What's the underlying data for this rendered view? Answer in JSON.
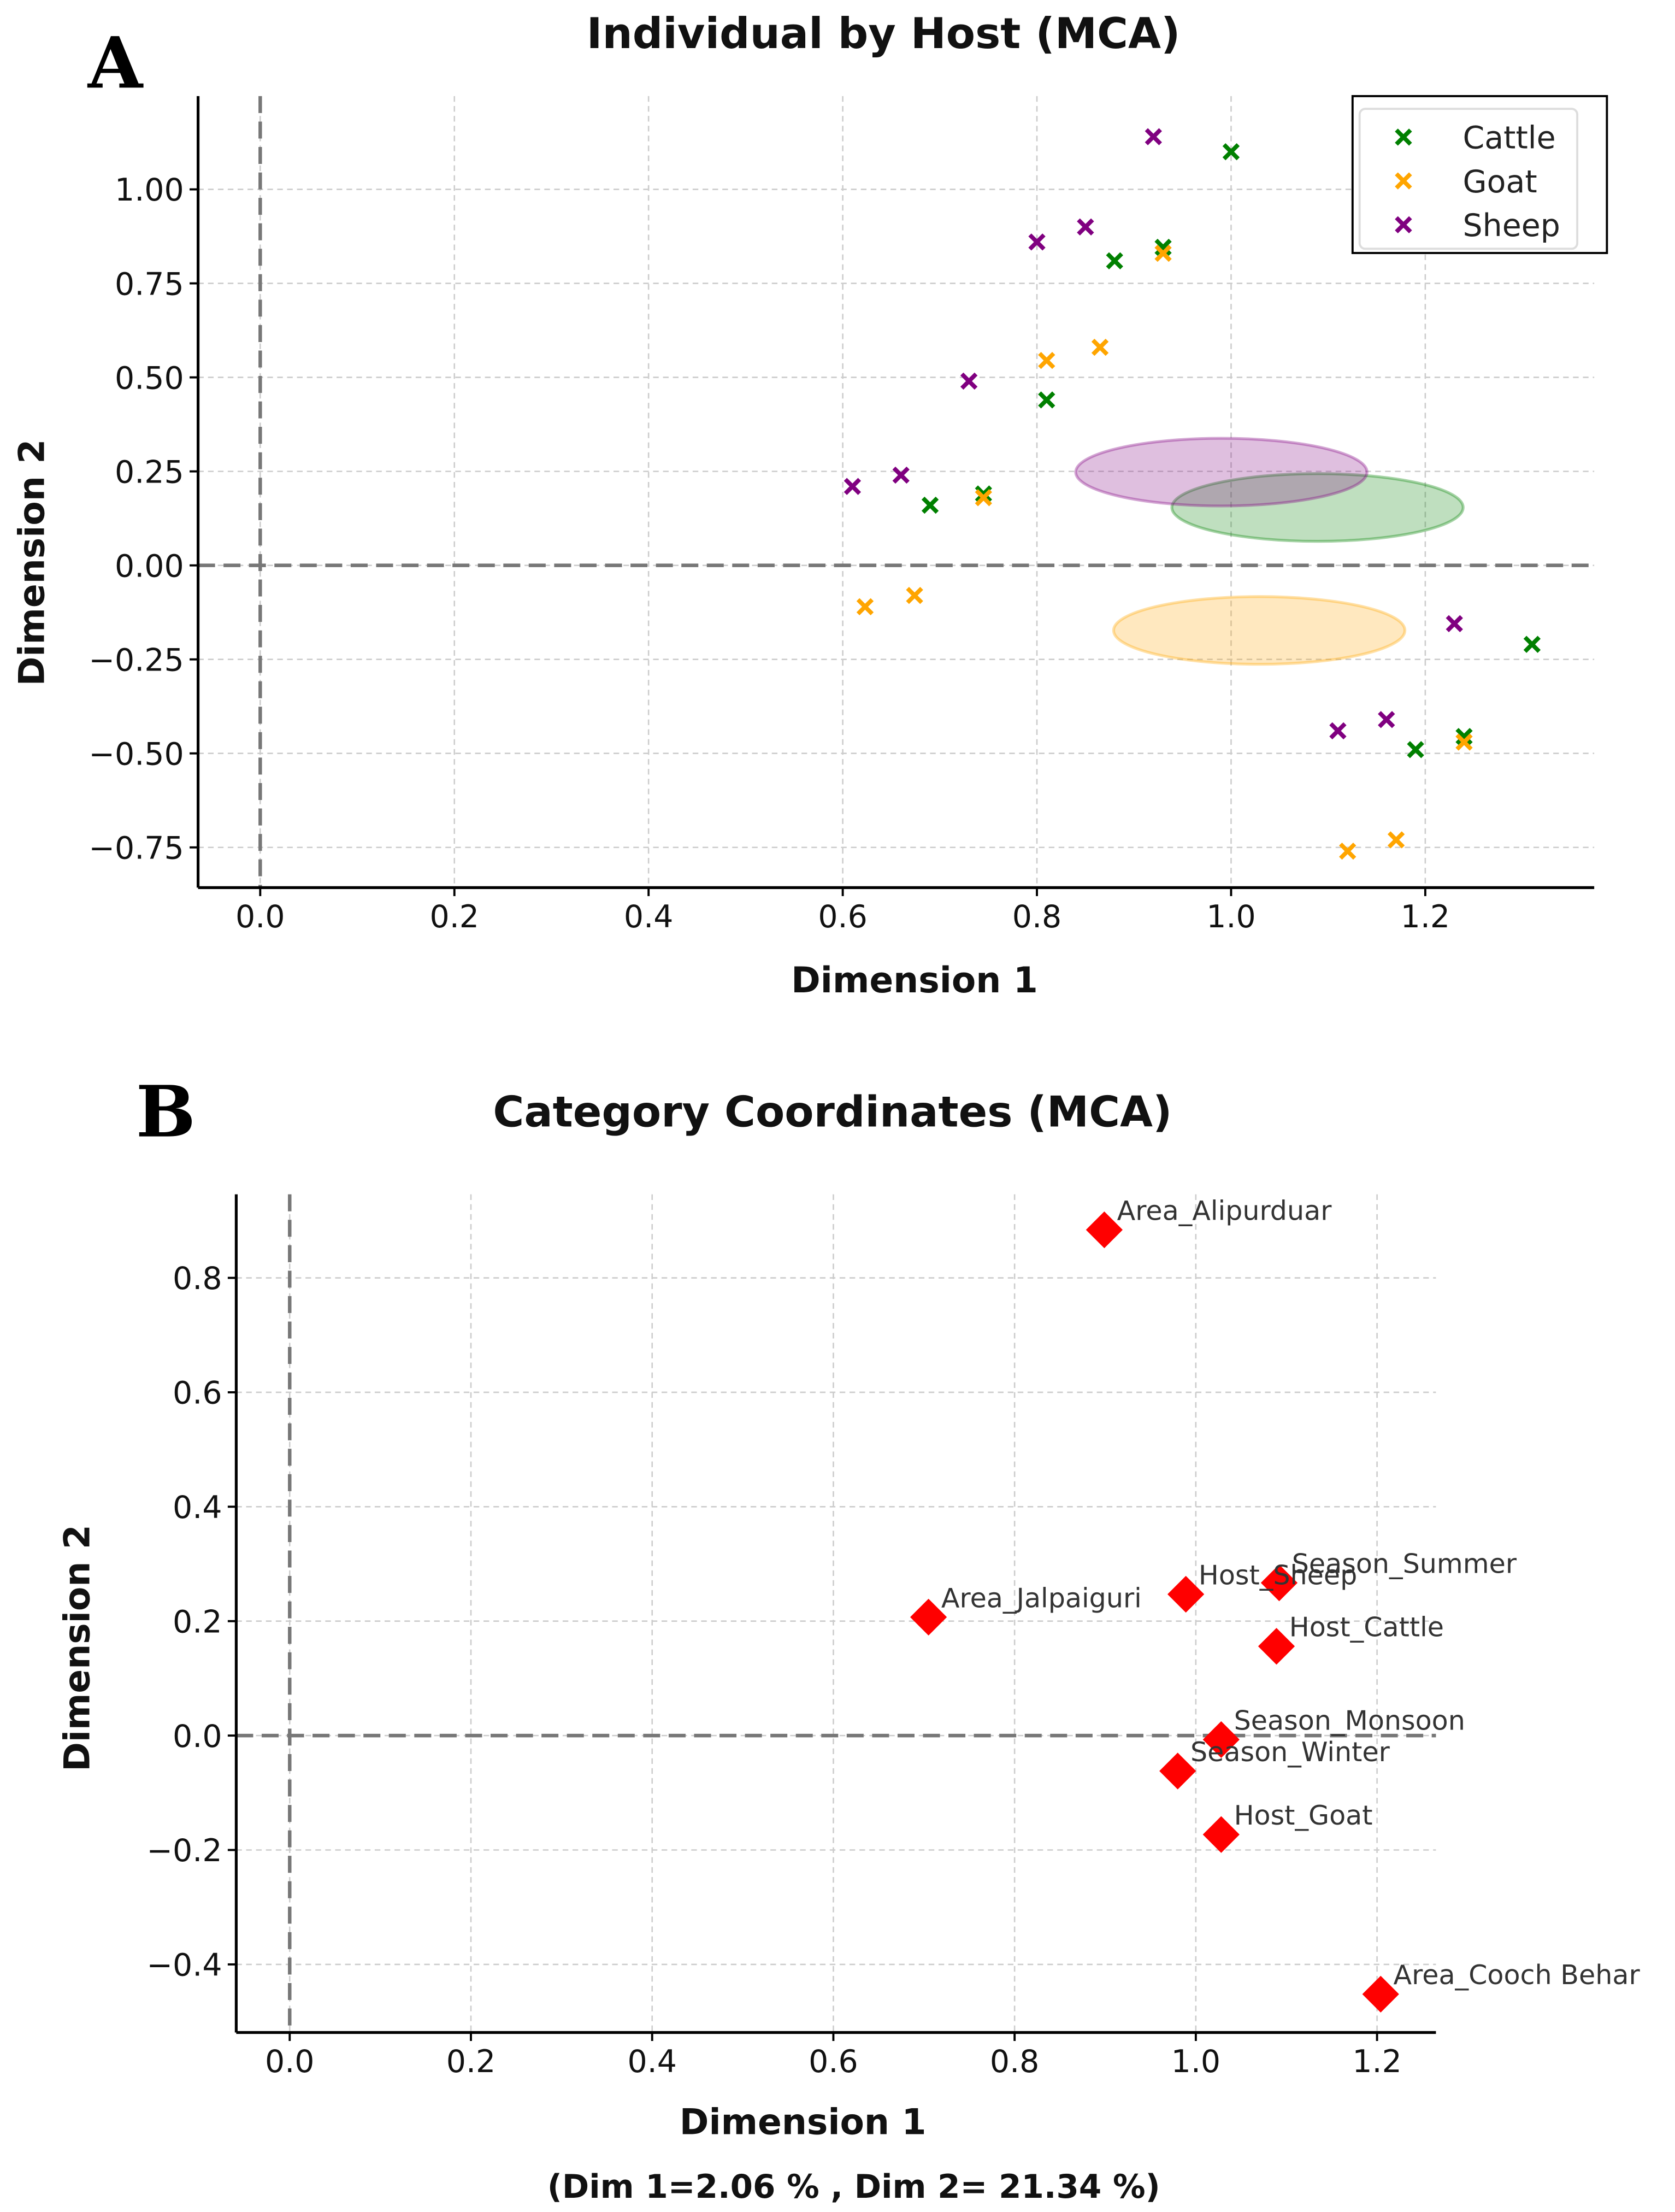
{
  "chart_data": [
    {
      "panel_label": "A",
      "type": "scatter",
      "title": "Individual by Host (MCA)",
      "xlabel": "Dimension 1",
      "ylabel": "Dimension 2",
      "xlim": [
        -0.064,
        1.374
      ],
      "ylim": [
        -0.857,
        1.248
      ],
      "xticks": [
        0.0,
        0.2,
        0.4,
        0.6,
        0.8,
        1.0,
        1.2
      ],
      "xtick_labels": [
        "0.0",
        "0.2",
        "0.4",
        "0.6",
        "0.8",
        "1.0",
        "1.2"
      ],
      "yticks": [
        -0.75,
        -0.5,
        -0.25,
        0.0,
        0.25,
        0.5,
        0.75,
        1.0
      ],
      "ytick_labels": [
        "−0.75",
        "−0.50",
        "−0.25",
        "0.00",
        "0.25",
        "0.50",
        "0.75",
        "1.00"
      ],
      "grid": true,
      "marker": "x",
      "reference_lines": {
        "x": 0,
        "y": 0
      },
      "legend_position": "top-right",
      "series": [
        {
          "name": "Cattle",
          "color": "#008000",
          "points": [
            [
              1.0,
              1.1
            ],
            [
              0.93,
              0.846
            ],
            [
              0.88,
              0.81
            ],
            [
              0.81,
              0.44
            ],
            [
              0.745,
              0.19
            ],
            [
              0.69,
              0.16
            ],
            [
              1.31,
              -0.21
            ],
            [
              1.24,
              -0.455
            ],
            [
              1.19,
              -0.49
            ]
          ],
          "ellipse": {
            "center": [
              1.089,
              0.154
            ],
            "rx": 0.15,
            "ry": 0.09
          }
        },
        {
          "name": "Goat",
          "color": "#FFA500",
          "points": [
            [
              0.93,
              0.83
            ],
            [
              0.81,
              0.545
            ],
            [
              0.865,
              0.58
            ],
            [
              0.745,
              0.18
            ],
            [
              0.623,
              -0.11
            ],
            [
              0.674,
              -0.08
            ],
            [
              1.24,
              -0.47
            ],
            [
              1.12,
              -0.76
            ],
            [
              1.17,
              -0.73
            ]
          ],
          "ellipse": {
            "center": [
              1.029,
              -0.173
            ],
            "rx": 0.15,
            "ry": 0.09
          }
        },
        {
          "name": "Sheep",
          "color": "#800080",
          "points": [
            [
              0.92,
              1.14
            ],
            [
              0.8,
              0.86
            ],
            [
              0.85,
              0.9
            ],
            [
              0.73,
              0.49
            ],
            [
              0.61,
              0.21
            ],
            [
              0.66,
              0.24
            ],
            [
              1.23,
              -0.155
            ],
            [
              1.11,
              -0.44
            ],
            [
              1.16,
              -0.41
            ]
          ],
          "ellipse": {
            "center": [
              0.99,
              0.248
            ],
            "rx": 0.15,
            "ry": 0.09
          }
        }
      ]
    },
    {
      "panel_label": "B",
      "type": "scatter",
      "title": "Category Coordinates  (MCA)",
      "xlabel": "Dimension 1",
      "ylabel": "Dimension 2",
      "footnote": "(Dim 1=2.06 % , Dim 2= 21.34 %)",
      "xlim": [
        -0.059,
        1.265
      ],
      "ylim": [
        -0.519,
        0.946
      ],
      "xticks": [
        0.0,
        0.2,
        0.4,
        0.6,
        0.8,
        1.0,
        1.2
      ],
      "xtick_labels": [
        "0.0",
        "0.2",
        "0.4",
        "0.6",
        "0.8",
        "1.0",
        "1.2"
      ],
      "yticks": [
        -0.4,
        -0.2,
        0.0,
        0.2,
        0.4,
        0.6,
        0.8
      ],
      "ytick_labels": [
        "−0.4",
        "−0.2",
        "0.0",
        "0.2",
        "0.4",
        "0.6",
        "0.8"
      ],
      "grid": true,
      "marker": "diamond",
      "color": "#FF0000",
      "reference_lines": {
        "x": 0,
        "y": 0
      },
      "points": [
        {
          "label": "Area_Alipurduar",
          "x": 0.899,
          "y": 0.884
        },
        {
          "label": "Area_Jalpaiguri",
          "x": 0.705,
          "y": 0.207
        },
        {
          "label": "Host_Sheep",
          "x": 0.989,
          "y": 0.247
        },
        {
          "label": "Season_Summer",
          "x": 1.092,
          "y": 0.267
        },
        {
          "label": "Host_Cattle",
          "x": 1.089,
          "y": 0.156
        },
        {
          "label": "Season_Monsoon",
          "x": 1.028,
          "y": -0.007
        },
        {
          "label": "Season_Winter",
          "x": 0.98,
          "y": -0.062
        },
        {
          "label": "Host_Goat",
          "x": 1.028,
          "y": -0.173
        },
        {
          "label": "Area_Cooch Behar",
          "x": 1.204,
          "y": -0.452
        }
      ]
    }
  ]
}
